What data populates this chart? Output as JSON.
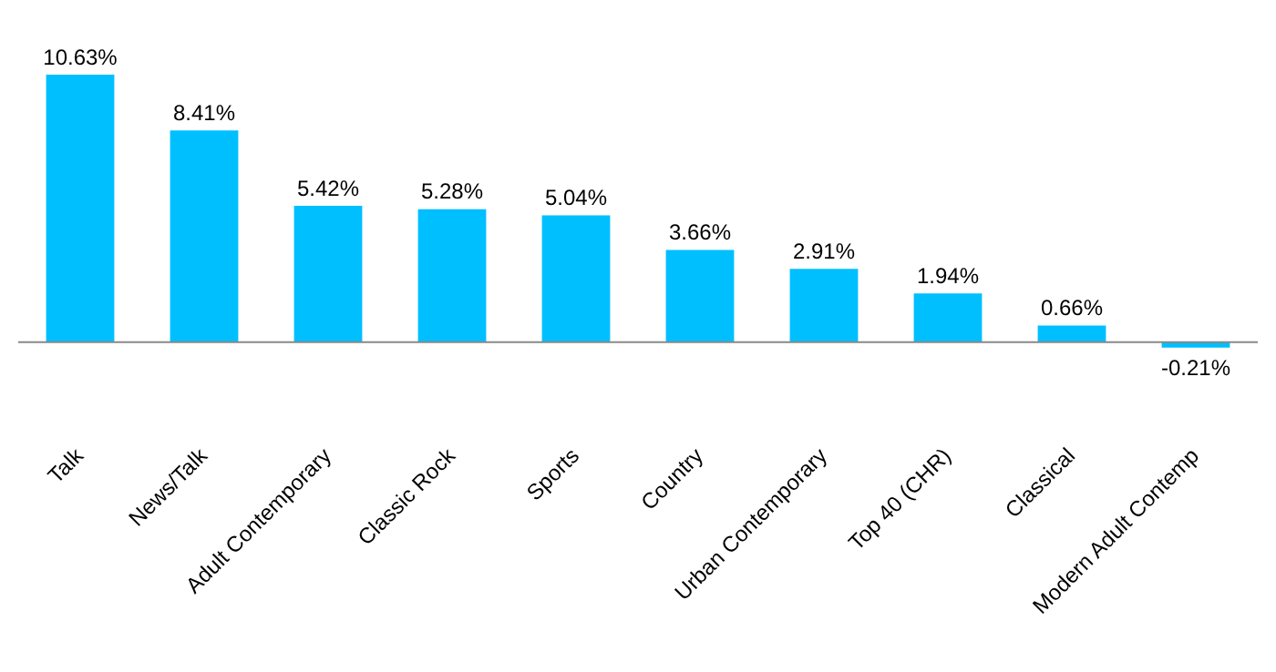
{
  "chart_data": {
    "type": "bar",
    "categories": [
      "Talk",
      "News/Talk",
      "Adult Contemporary",
      "Classic Rock",
      "Sports",
      "Country",
      "Urban Contemporary",
      "Top 40 (CHR)",
      "Classical",
      "Modern Adult Contemp"
    ],
    "values": [
      10.63,
      8.41,
      5.42,
      5.28,
      5.04,
      3.66,
      2.91,
      1.94,
      0.66,
      -0.21
    ],
    "value_labels": [
      "10.63%",
      "8.41%",
      "5.42%",
      "5.28%",
      "5.04%",
      "3.66%",
      "2.91%",
      "1.94%",
      "0.66%",
      "-0.21%"
    ],
    "color": "#00bfff",
    "grid": false,
    "legend": false
  }
}
